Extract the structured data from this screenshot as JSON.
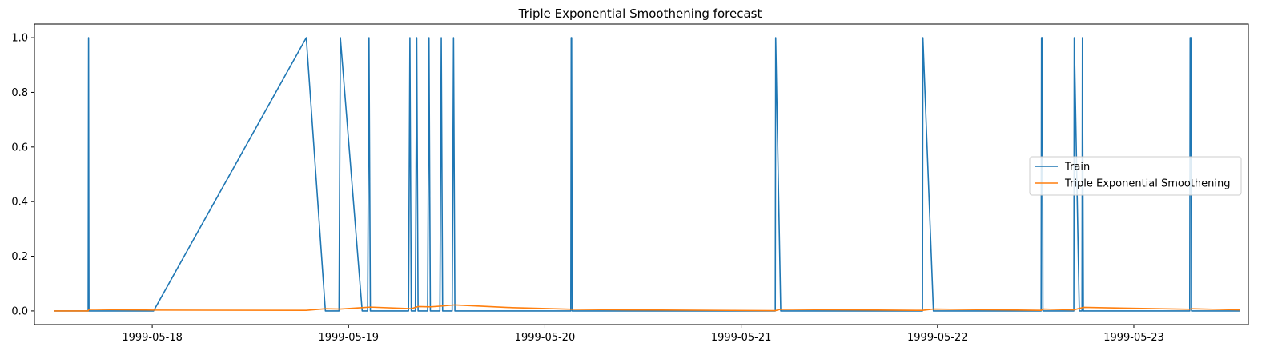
{
  "chart_data": {
    "type": "line",
    "title": "Triple Exponential Smoothening forecast",
    "xlabel": "",
    "ylabel": "",
    "x_axis": "date",
    "xlim": [
      "1999-05-17T09:36",
      "1999-05-23T14:00"
    ],
    "ylim": [
      -0.05,
      1.05
    ],
    "x_ticks": [
      "1999-05-18",
      "1999-05-19",
      "1999-05-20",
      "1999-05-21",
      "1999-05-22",
      "1999-05-23"
    ],
    "y_ticks": [
      0.0,
      0.2,
      0.4,
      0.6,
      0.8,
      1.0
    ],
    "grid": false,
    "legend": {
      "position": "center-right"
    },
    "series": [
      {
        "name": "Train",
        "color": "#1f77b4",
        "points": [
          [
            "1999-05-17T12:00",
            0
          ],
          [
            "1999-05-17T16:10",
            0
          ],
          [
            "1999-05-17T16:13",
            1
          ],
          [
            "1999-05-17T16:16",
            0
          ],
          [
            "1999-05-18T00:10",
            0
          ],
          [
            "1999-05-18T18:50",
            1
          ],
          [
            "1999-05-18T21:10",
            0
          ],
          [
            "1999-05-18T22:50",
            0
          ],
          [
            "1999-05-18T23:00",
            1
          ],
          [
            "1999-05-19T01:40",
            0
          ],
          [
            "1999-05-19T02:20",
            0
          ],
          [
            "1999-05-19T02:30",
            1
          ],
          [
            "1999-05-19T02:40",
            0
          ],
          [
            "1999-05-19T07:20",
            0
          ],
          [
            "1999-05-19T07:30",
            1
          ],
          [
            "1999-05-19T07:40",
            0
          ],
          [
            "1999-05-19T08:10",
            0
          ],
          [
            "1999-05-19T08:20",
            1
          ],
          [
            "1999-05-19T08:30",
            0
          ],
          [
            "1999-05-19T09:40",
            0
          ],
          [
            "1999-05-19T09:50",
            1
          ],
          [
            "1999-05-19T10:00",
            0
          ],
          [
            "1999-05-19T11:10",
            0
          ],
          [
            "1999-05-19T11:20",
            1
          ],
          [
            "1999-05-19T11:30",
            0
          ],
          [
            "1999-05-19T12:40",
            0
          ],
          [
            "1999-05-19T12:50",
            1
          ],
          [
            "1999-05-19T13:00",
            0
          ],
          [
            "1999-05-20T03:10",
            0
          ],
          [
            "1999-05-20T03:13",
            1
          ],
          [
            "1999-05-20T03:16",
            1
          ],
          [
            "1999-05-20T03:20",
            0
          ],
          [
            "1999-05-21T04:10",
            0
          ],
          [
            "1999-05-21T04:13",
            1
          ],
          [
            "1999-05-21T04:50",
            0
          ],
          [
            "1999-05-21T22:10",
            0
          ],
          [
            "1999-05-21T22:13",
            1
          ],
          [
            "1999-05-21T23:30",
            0
          ],
          [
            "1999-05-22T12:40",
            0
          ],
          [
            "1999-05-22T12:43",
            1
          ],
          [
            "1999-05-22T12:50",
            1
          ],
          [
            "1999-05-22T12:53",
            0
          ],
          [
            "1999-05-22T16:40",
            0
          ],
          [
            "1999-05-22T16:43",
            1
          ],
          [
            "1999-05-22T17:20",
            0
          ],
          [
            "1999-05-22T17:40",
            0
          ],
          [
            "1999-05-22T17:43",
            1
          ],
          [
            "1999-05-22T17:50",
            0
          ],
          [
            "1999-05-23T06:50",
            0
          ],
          [
            "1999-05-23T06:53",
            1
          ],
          [
            "1999-05-23T07:00",
            1
          ],
          [
            "1999-05-23T07:03",
            0
          ],
          [
            "1999-05-23T13:00",
            0
          ]
        ]
      },
      {
        "name": "Triple Exponential Smoothening",
        "color": "#ff7f0e",
        "points": [
          [
            "1999-05-17T12:00",
            0
          ],
          [
            "1999-05-17T16:10",
            0
          ],
          [
            "1999-05-17T16:16",
            0.006
          ],
          [
            "1999-05-18T00:10",
            0.003
          ],
          [
            "1999-05-18T18:50",
            0.002
          ],
          [
            "1999-05-18T21:10",
            0.008
          ],
          [
            "1999-05-18T23:00",
            0.007
          ],
          [
            "1999-05-19T01:40",
            0.012
          ],
          [
            "1999-05-19T02:40",
            0.014
          ],
          [
            "1999-05-19T07:40",
            0.008
          ],
          [
            "1999-05-19T08:30",
            0.016
          ],
          [
            "1999-05-19T10:00",
            0.015
          ],
          [
            "1999-05-19T11:30",
            0.018
          ],
          [
            "1999-05-19T13:00",
            0.022
          ],
          [
            "1999-05-19T20:00",
            0.012
          ],
          [
            "1999-05-20T03:20",
            0.006
          ],
          [
            "1999-05-20T10:00",
            0.004
          ],
          [
            "1999-05-21T04:10",
            0.001
          ],
          [
            "1999-05-21T04:50",
            0.006
          ],
          [
            "1999-05-21T22:10",
            0.002
          ],
          [
            "1999-05-21T23:30",
            0.007
          ],
          [
            "1999-05-22T12:40",
            0.002
          ],
          [
            "1999-05-22T12:53",
            0.007
          ],
          [
            "1999-05-22T16:40",
            0.004
          ],
          [
            "1999-05-22T17:20",
            0.009
          ],
          [
            "1999-05-22T17:50",
            0.013
          ],
          [
            "1999-05-23T06:50",
            0.006
          ],
          [
            "1999-05-23T07:03",
            0.008
          ],
          [
            "1999-05-23T13:00",
            0.004
          ]
        ]
      }
    ]
  }
}
